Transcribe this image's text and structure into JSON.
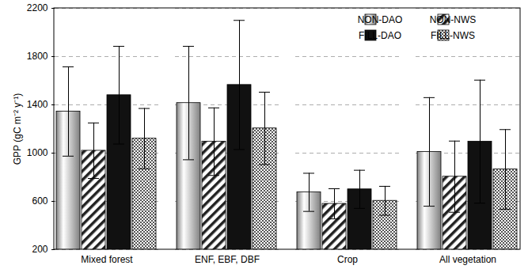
{
  "chart_data": {
    "type": "bar",
    "ylabel": "GPP (gC m⁻² y⁻¹)",
    "categories": [
      "Mixed forest",
      "ENF, EBF, DBF",
      "Crop",
      "All vegetation"
    ],
    "series": [
      {
        "name": "NON-DAO",
        "color": "#808080",
        "values": [
          1345,
          1415,
          675,
          1010
        ],
        "errors": [
          370,
          470,
          158,
          450
        ]
      },
      {
        "name": "NON-NWS",
        "color": "#222222",
        "values": [
          1020,
          1095,
          580,
          805
        ],
        "errors": [
          230,
          280,
          125,
          295
        ]
      },
      {
        "name": "FILL-DAO",
        "color": "#111111",
        "values": [
          1480,
          1565,
          700,
          1095
        ],
        "errors": [
          405,
          535,
          158,
          510
        ]
      },
      {
        "name": "FILL-NWS",
        "color": "#555555",
        "values": [
          1120,
          1205,
          605,
          865
        ],
        "errors": [
          250,
          300,
          120,
          330
        ]
      }
    ],
    "ylim": [
      200,
      2200
    ],
    "yticks": [
      200,
      600,
      1000,
      1400,
      1800,
      2200
    ],
    "grid": true,
    "legend": "top-right"
  }
}
